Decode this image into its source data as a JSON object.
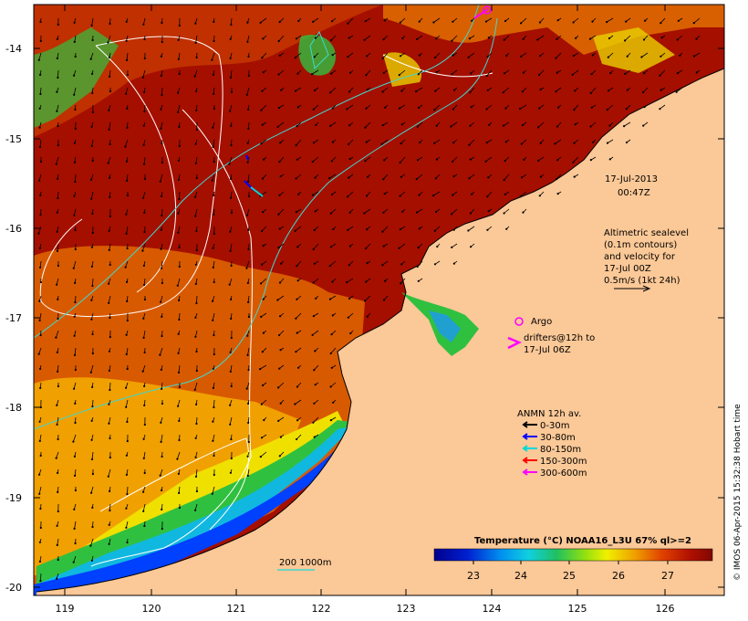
{
  "map": {
    "lon_ticks": [
      "119",
      "120",
      "121",
      "122",
      "123",
      "124",
      "125",
      "126"
    ],
    "lat_ticks": [
      "-14",
      "-15",
      "-16",
      "-17",
      "-18",
      "-19",
      "-20"
    ],
    "timestamp_date": "17-Jul-2013",
    "timestamp_time": "00:47Z",
    "altimetry_lines": [
      "Altimetric sealevel",
      "(0.1m contours)",
      "and velocity for",
      "17-Jul 00Z",
      "0.5m/s (1kt 24h)"
    ],
    "argo_label": "Argo",
    "drifters_lines": [
      "drifters@12h to",
      "17-Jul 06Z"
    ],
    "anmn_title": "ANMN 12h av.",
    "anmn_items": [
      {
        "label": "0-30m",
        "color": "#000000"
      },
      {
        "label": "30-80m",
        "color": "#0000ff"
      },
      {
        "label": "80-150m",
        "color": "#00d8d8"
      },
      {
        "label": "150-300m",
        "color": "#ff0000"
      },
      {
        "label": "300-600m",
        "color": "#ff00ff"
      }
    ],
    "depth_contours_label": "200  1000m",
    "colorbar_title": "Temperature (°C) NOAA16_L3U 67% ql>=2",
    "colorbar_ticks": [
      "23",
      "24",
      "25",
      "26",
      "27"
    ],
    "credit": "© IMOS 06-Apr-2015 15:32:38 Hobart time",
    "colors": {
      "land": "#fbc897",
      "warm": "#a50f00",
      "hot": "#8c0a00",
      "mid": "#d95a00",
      "yellow": "#f0e000",
      "green": "#30c040",
      "cyan": "#10c0e0",
      "blue": "#0040ff",
      "argo": "#ff00ff",
      "contour_cyan": "#40d8d0"
    }
  }
}
